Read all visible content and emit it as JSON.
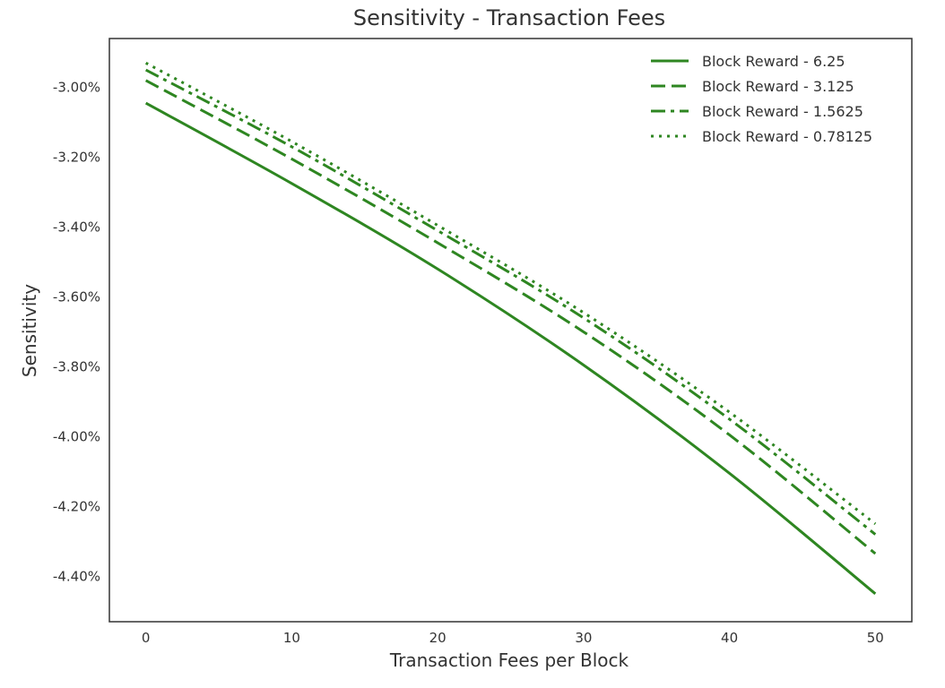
{
  "chart_data": {
    "type": "line",
    "title": "Sensitivity - Transaction Fees",
    "xlabel": "Transaction Fees per Block",
    "ylabel": "Sensitivity",
    "xlim": [
      -2.5,
      52.5
    ],
    "ylim": [
      -4.53,
      -2.86
    ],
    "x_ticks": [
      0,
      10,
      20,
      30,
      40,
      50
    ],
    "x_tick_labels": [
      "0",
      "10",
      "20",
      "30",
      "40",
      "50"
    ],
    "y_ticks": [
      -3.0,
      -3.2,
      -3.4,
      -3.6,
      -3.8,
      -4.0,
      -4.2,
      -4.4
    ],
    "y_tick_labels": [
      "-3.00%",
      "-3.20%",
      "-3.40%",
      "-3.60%",
      "-3.80%",
      "-4.00%",
      "-4.20%",
      "-4.40%"
    ],
    "grid": false,
    "legend_position": "top-right",
    "color": "#2e8621",
    "x": [
      0,
      10,
      20,
      30,
      40,
      50
    ],
    "series": [
      {
        "name": "Block Reward - 6.25",
        "style": "solid",
        "values": [
          -3.045,
          -3.275,
          -3.52,
          -3.795,
          -4.105,
          -4.45
        ]
      },
      {
        "name": "Block Reward - 3.125",
        "style": "dashed",
        "values": [
          -2.98,
          -3.205,
          -3.445,
          -3.7,
          -3.995,
          -4.335
        ]
      },
      {
        "name": "Block Reward - 1.5625",
        "style": "dashdot",
        "values": [
          -2.95,
          -3.17,
          -3.41,
          -3.66,
          -3.95,
          -4.28
        ]
      },
      {
        "name": "Block Reward - 0.78125",
        "style": "dotted",
        "values": [
          -2.93,
          -3.155,
          -3.395,
          -3.645,
          -3.93,
          -4.25
        ]
      }
    ]
  }
}
